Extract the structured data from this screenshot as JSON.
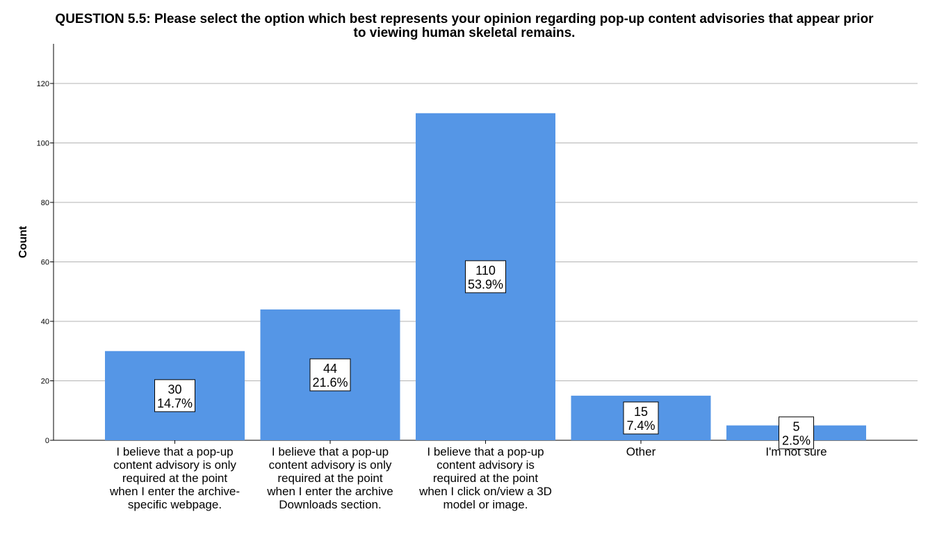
{
  "chart_data": {
    "type": "bar",
    "title": "QUESTION 5.5: Please select the option which best represents your opinion regarding pop-up content advisories that appear prior to viewing human skeletal remains.",
    "title_lines": [
      "QUESTION 5.5: Please select the option which best represents your opinion regarding pop-up content advisories that appear prior",
      "to viewing human skeletal remains."
    ],
    "ylabel": "Count",
    "xlabel": "",
    "ylim": [
      0,
      130
    ],
    "yticks": [
      0,
      20,
      40,
      60,
      80,
      100,
      120
    ],
    "grid": true,
    "bar_color": "#5596e6",
    "categories": [
      [
        "I believe that a pop-up",
        "content advisory is only",
        "required at the point",
        "when I enter the archive-",
        "specific webpage."
      ],
      [
        "I believe that a pop-up",
        "content advisory is only",
        "required at the point",
        "when I enter the archive",
        "Downloads section."
      ],
      [
        "I believe that a pop-up",
        "content advisory is",
        "required at the point",
        "when I click on/view a 3D",
        "model or image."
      ],
      [
        "Other"
      ],
      [
        "I'm not sure"
      ]
    ],
    "values": [
      30,
      44,
      110,
      15,
      5
    ],
    "percent_labels": [
      "14.7%",
      "21.6%",
      "53.9%",
      "7.4%",
      "2.5%"
    ]
  }
}
